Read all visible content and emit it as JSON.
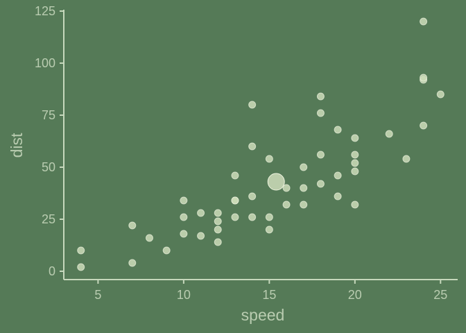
{
  "chart_data": {
    "type": "scatter",
    "xlabel": "speed",
    "ylabel": "dist",
    "xlim": [
      3,
      26
    ],
    "ylim": [
      -4,
      127
    ],
    "xticks": [
      5,
      10,
      15,
      20,
      25
    ],
    "yticks": [
      0,
      25,
      50,
      75,
      100,
      125
    ],
    "grid": false,
    "colors": {
      "background": "#557a57",
      "point": "#ccdcb8",
      "axis": "#c6d8bc",
      "text": "#b9ccb0"
    },
    "points": [
      {
        "x": 4,
        "y": 2
      },
      {
        "x": 4,
        "y": 10
      },
      {
        "x": 7,
        "y": 4
      },
      {
        "x": 7,
        "y": 22
      },
      {
        "x": 8,
        "y": 16
      },
      {
        "x": 9,
        "y": 10
      },
      {
        "x": 10,
        "y": 18
      },
      {
        "x": 10,
        "y": 26
      },
      {
        "x": 10,
        "y": 34
      },
      {
        "x": 11,
        "y": 17
      },
      {
        "x": 11,
        "y": 28
      },
      {
        "x": 12,
        "y": 14
      },
      {
        "x": 12,
        "y": 20
      },
      {
        "x": 12,
        "y": 24
      },
      {
        "x": 12,
        "y": 28
      },
      {
        "x": 13,
        "y": 26
      },
      {
        "x": 13,
        "y": 34
      },
      {
        "x": 13,
        "y": 34
      },
      {
        "x": 13,
        "y": 46
      },
      {
        "x": 14,
        "y": 26
      },
      {
        "x": 14,
        "y": 36
      },
      {
        "x": 14,
        "y": 60
      },
      {
        "x": 14,
        "y": 80
      },
      {
        "x": 15,
        "y": 20
      },
      {
        "x": 15,
        "y": 26
      },
      {
        "x": 15,
        "y": 54
      },
      {
        "x": 16,
        "y": 32
      },
      {
        "x": 16,
        "y": 40
      },
      {
        "x": 17,
        "y": 32
      },
      {
        "x": 17,
        "y": 40
      },
      {
        "x": 17,
        "y": 50
      },
      {
        "x": 18,
        "y": 42
      },
      {
        "x": 18,
        "y": 56
      },
      {
        "x": 18,
        "y": 76
      },
      {
        "x": 18,
        "y": 84
      },
      {
        "x": 19,
        "y": 36
      },
      {
        "x": 19,
        "y": 46
      },
      {
        "x": 19,
        "y": 68
      },
      {
        "x": 20,
        "y": 32
      },
      {
        "x": 20,
        "y": 48
      },
      {
        "x": 20,
        "y": 52
      },
      {
        "x": 20,
        "y": 56
      },
      {
        "x": 20,
        "y": 64
      },
      {
        "x": 22,
        "y": 66
      },
      {
        "x": 23,
        "y": 54
      },
      {
        "x": 24,
        "y": 70
      },
      {
        "x": 24,
        "y": 92
      },
      {
        "x": 24,
        "y": 93
      },
      {
        "x": 24,
        "y": 120
      },
      {
        "x": 25,
        "y": 85
      }
    ],
    "mean_point": {
      "x": 15.4,
      "y": 42.98
    }
  }
}
